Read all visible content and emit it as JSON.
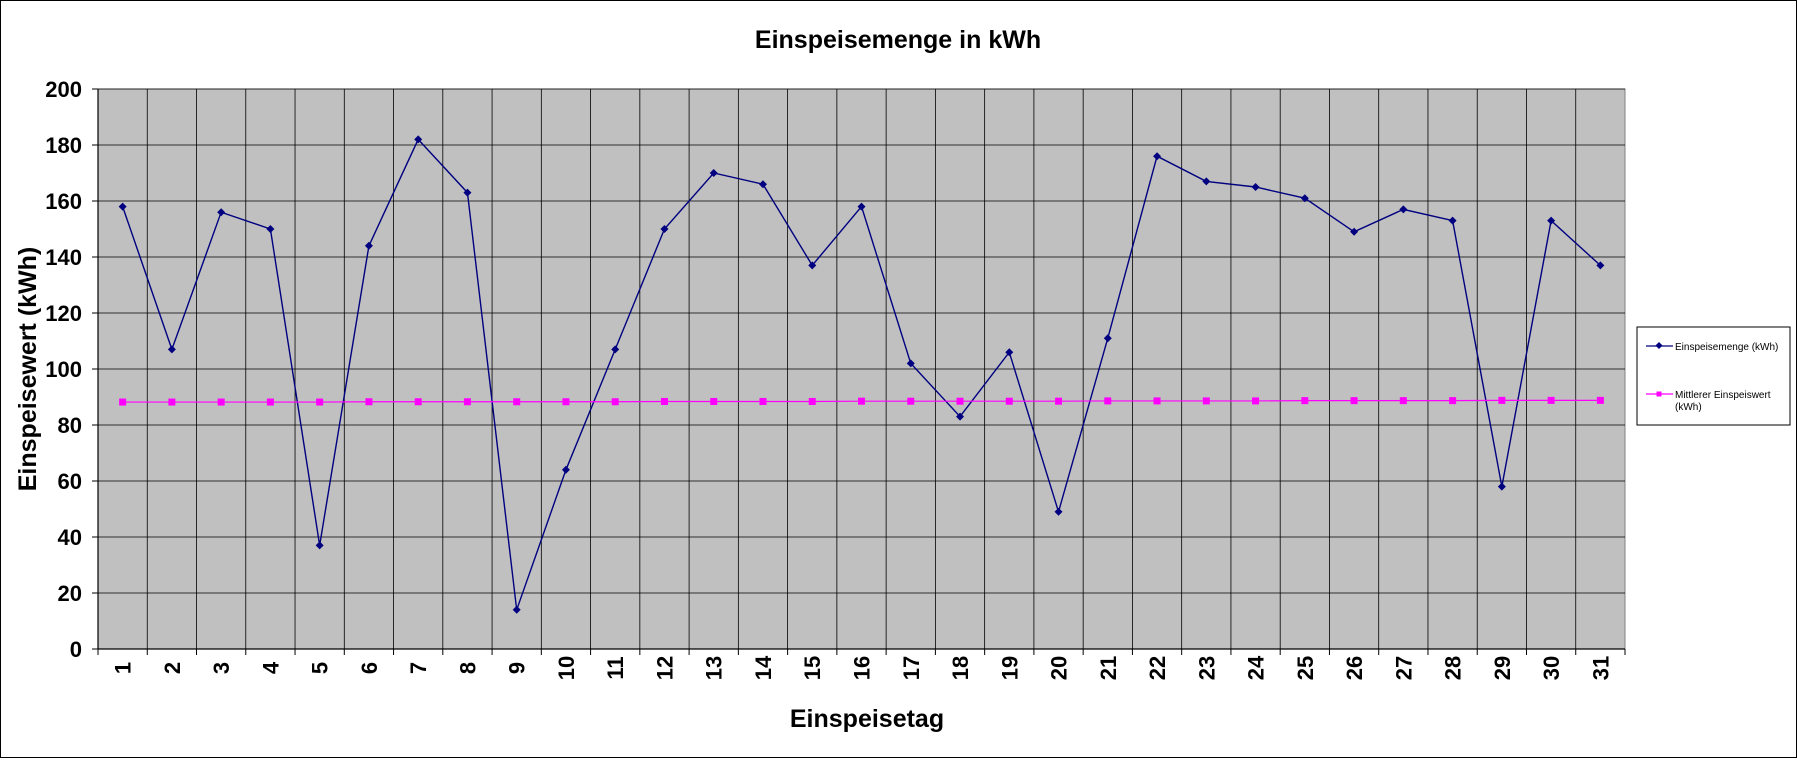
{
  "chart_data": {
    "type": "line",
    "title": "Einspeisemenge in kWh",
    "xlabel": "Einspeisetag",
    "ylabel": "Einspeisewert  (kWh)",
    "ylim": [
      0,
      200
    ],
    "yticks": [
      "0",
      "20",
      "40",
      "60",
      "80",
      "100",
      "120",
      "140",
      "160",
      "180",
      "200"
    ],
    "categories": [
      "1",
      "2",
      "3",
      "4",
      "5",
      "6",
      "7",
      "8",
      "9",
      "10",
      "11",
      "12",
      "13",
      "14",
      "15",
      "16",
      "17",
      "18",
      "19",
      "20",
      "21",
      "22",
      "23",
      "24",
      "25",
      "26",
      "27",
      "28",
      "29",
      "30",
      "31"
    ],
    "grid": true,
    "legend_position": "right",
    "plot_background": "#c0c0c0",
    "series": [
      {
        "name": "Einspeisemenge (kWh)",
        "color": "#000080",
        "marker": "diamond",
        "values": [
          158,
          107,
          156,
          150,
          37,
          144,
          182,
          163,
          14,
          64,
          107,
          150,
          170,
          166,
          137,
          158,
          102,
          83,
          106,
          49,
          111,
          176,
          167,
          165,
          161,
          149,
          157,
          153,
          58,
          153,
          137
        ]
      },
      {
        "name": "Mittlerer Einspeiswert (kWh)",
        "color": "#ff00ff",
        "marker": "square",
        "values": [
          88.2,
          88.2,
          88.2,
          88.2,
          88.2,
          88.3,
          88.3,
          88.3,
          88.3,
          88.3,
          88.3,
          88.4,
          88.4,
          88.4,
          88.4,
          88.5,
          88.5,
          88.5,
          88.5,
          88.5,
          88.6,
          88.6,
          88.6,
          88.6,
          88.7,
          88.7,
          88.7,
          88.7,
          88.8,
          88.8,
          88.8
        ]
      }
    ]
  }
}
